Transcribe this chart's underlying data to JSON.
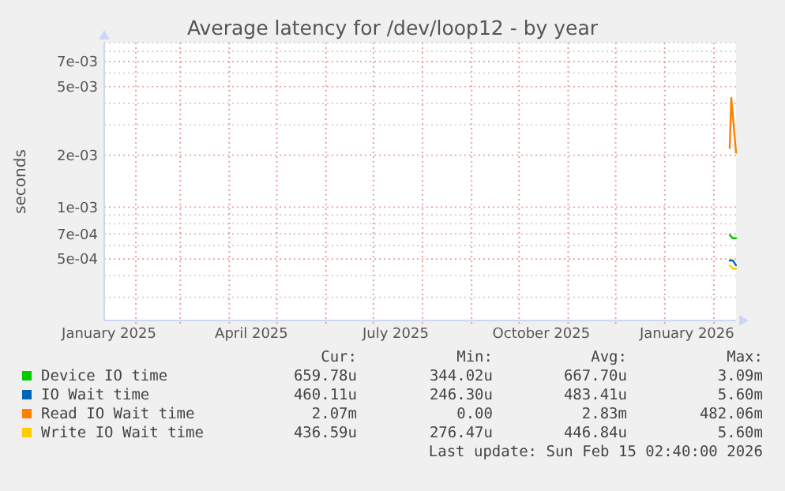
{
  "chart_data": {
    "type": "line",
    "title": "Average latency for /dev/loop12 - by year",
    "ylabel": "seconds",
    "log": true,
    "grid": true,
    "legend": "bottom",
    "marker": "none",
    "line_style": "solid",
    "xlim": [
      "2025-01-12",
      "2026-02-15"
    ],
    "xticks": [
      {
        "value": "2025-01-15",
        "label": "January 2025"
      },
      {
        "value": "2025-04-15",
        "label": "April 2025"
      },
      {
        "value": "2025-07-15",
        "label": "July 2025"
      },
      {
        "value": "2025-10-15",
        "label": "October 2025"
      },
      {
        "value": "2026-01-15",
        "label": "January 2026"
      },
      {
        "value": "2025-02-01",
        "label": null
      },
      {
        "value": "2025-03-01",
        "label": null
      },
      {
        "value": "2025-04-01",
        "label": null
      },
      {
        "value": "2025-05-01",
        "label": null
      },
      {
        "value": "2025-06-01",
        "label": null
      },
      {
        "value": "2025-07-01",
        "label": null
      },
      {
        "value": "2025-08-01",
        "label": null
      },
      {
        "value": "2025-09-01",
        "label": null
      },
      {
        "value": "2025-10-01",
        "label": null
      },
      {
        "value": "2025-11-01",
        "label": null
      },
      {
        "value": "2025-12-01",
        "label": null
      },
      {
        "value": "2026-01-01",
        "label": null
      },
      {
        "value": "2026-02-01",
        "label": null
      }
    ],
    "ylim": [
      0.00022,
      0.009
    ],
    "yticks": [
      {
        "value": 0.0005,
        "label": "5e-04"
      },
      {
        "value": 0.0007,
        "label": "7e-04"
      },
      {
        "value": 0.001,
        "label": "1e-03"
      },
      {
        "value": 0.002,
        "label": "2e-03"
      },
      {
        "value": 0.005,
        "label": "5e-03"
      },
      {
        "value": 0.007,
        "label": "7e-03"
      },
      {
        "value": 0.0003,
        "label": null
      },
      {
        "value": 0.0004,
        "label": null
      },
      {
        "value": 0.0006,
        "label": null
      },
      {
        "value": 0.0008,
        "label": null
      },
      {
        "value": 0.0009,
        "label": null
      },
      {
        "value": 0.003,
        "label": null
      },
      {
        "value": 0.004,
        "label": null
      },
      {
        "value": 0.006,
        "label": null
      },
      {
        "value": 0.008,
        "label": null
      },
      {
        "value": 0.009,
        "label": null
      }
    ],
    "series": [
      {
        "name": "Device IO time",
        "color": "#00cc00",
        "x": [
          "2026-02-11",
          "2026-02-13",
          "2026-02-15"
        ],
        "values": [
          0.00069,
          0.00066,
          0.00066
        ]
      },
      {
        "name": "IO Wait time",
        "color": "#0066b3",
        "x": [
          "2026-02-11",
          "2026-02-13",
          "2026-02-15"
        ],
        "values": [
          0.00049,
          0.00049,
          0.00046
        ]
      },
      {
        "name": "Read IO Wait time",
        "color": "#ff8000",
        "x": [
          "2026-02-11",
          "2026-02-12",
          "2026-02-15"
        ],
        "values": [
          0.0022,
          0.0043,
          0.00207
        ]
      },
      {
        "name": "Write IO Wait time",
        "color": "#ffcc00",
        "x": [
          "2026-02-11",
          "2026-02-13",
          "2026-02-15"
        ],
        "values": [
          0.00046,
          0.00044,
          0.00044
        ]
      }
    ],
    "annotations": [
      "Cur:",
      "Min:",
      "Avg:",
      "Max:",
      "659.78u",
      "344.02u",
      "667.70u",
      "3.09m",
      "460.11u",
      "246.30u",
      "483.41u",
      "5.60m",
      "2.07m",
      "0.00",
      "2.83m",
      "482.06m",
      "436.59u",
      "276.47u",
      "446.84u",
      "5.60m",
      "Last update: Sun Feb 15 02:40:00 2026"
    ]
  }
}
